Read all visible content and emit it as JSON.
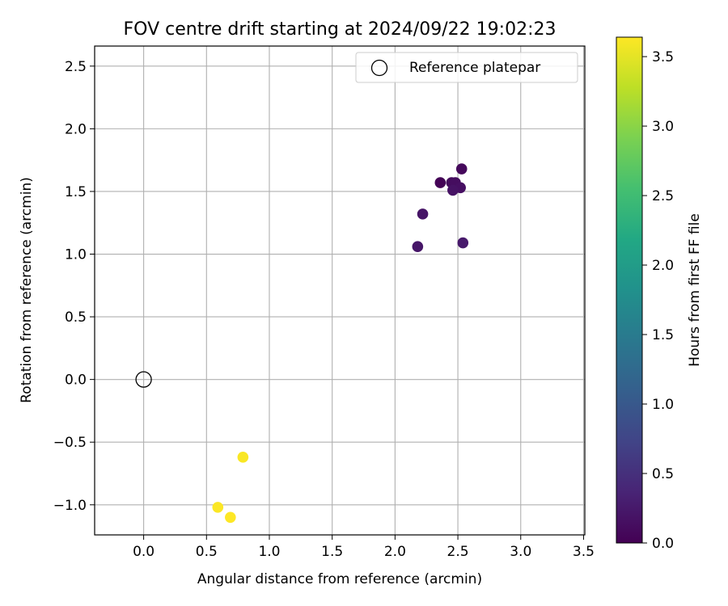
{
  "chart_data": {
    "type": "scatter",
    "title": "FOV centre drift starting at 2024/09/22 19:02:23",
    "xlabel": "Angular distance from reference (arcmin)",
    "ylabel": "Rotation from reference (arcmin)",
    "xlim": [
      -0.39,
      3.51
    ],
    "ylim": [
      -1.24,
      2.66
    ],
    "xticks": [
      0.0,
      0.5,
      1.0,
      1.5,
      2.0,
      2.5,
      3.0,
      3.5
    ],
    "xtick_labels": [
      "0.0",
      "0.5",
      "1.0",
      "1.5",
      "2.0",
      "2.5",
      "3.0",
      "3.5"
    ],
    "yticks": [
      -1.0,
      -0.5,
      0.0,
      0.5,
      1.0,
      1.5,
      2.0,
      2.5
    ],
    "ytick_labels": [
      "−1.0",
      "−0.5",
      "0.0",
      "0.5",
      "1.0",
      "1.5",
      "2.0",
      "2.5"
    ],
    "grid": true,
    "legend": {
      "placement": "top-right",
      "entries": [
        "Reference platepar"
      ]
    },
    "reference_point": {
      "name": "Reference platepar",
      "x": 0.0,
      "y": 0.0
    },
    "points": [
      {
        "x": 2.36,
        "y": 1.57,
        "hours": 0.02
      },
      {
        "x": 2.45,
        "y": 1.57,
        "hours": 0.1
      },
      {
        "x": 2.48,
        "y": 1.57,
        "hours": 0.12
      },
      {
        "x": 2.52,
        "y": 1.53,
        "hours": 0.15
      },
      {
        "x": 2.46,
        "y": 1.51,
        "hours": 0.18
      },
      {
        "x": 2.53,
        "y": 1.68,
        "hours": 0.08
      },
      {
        "x": 2.22,
        "y": 1.32,
        "hours": 0.2
      },
      {
        "x": 2.18,
        "y": 1.06,
        "hours": 0.22
      },
      {
        "x": 2.54,
        "y": 1.09,
        "hours": 0.25
      },
      {
        "x": 0.79,
        "y": -0.62,
        "hours": 3.62
      },
      {
        "x": 0.59,
        "y": -1.02,
        "hours": 3.63
      },
      {
        "x": 0.69,
        "y": -1.1,
        "hours": 3.64
      }
    ],
    "colorbar": {
      "label": "Hours from first FF file",
      "colormap": "viridis",
      "range": [
        0.0,
        3.64
      ],
      "ticks": [
        0.0,
        0.5,
        1.0,
        1.5,
        2.0,
        2.5,
        3.0,
        3.5
      ],
      "tick_labels": [
        "0.0",
        "0.5",
        "1.0",
        "1.5",
        "2.0",
        "2.5",
        "3.0",
        "3.5"
      ]
    }
  }
}
